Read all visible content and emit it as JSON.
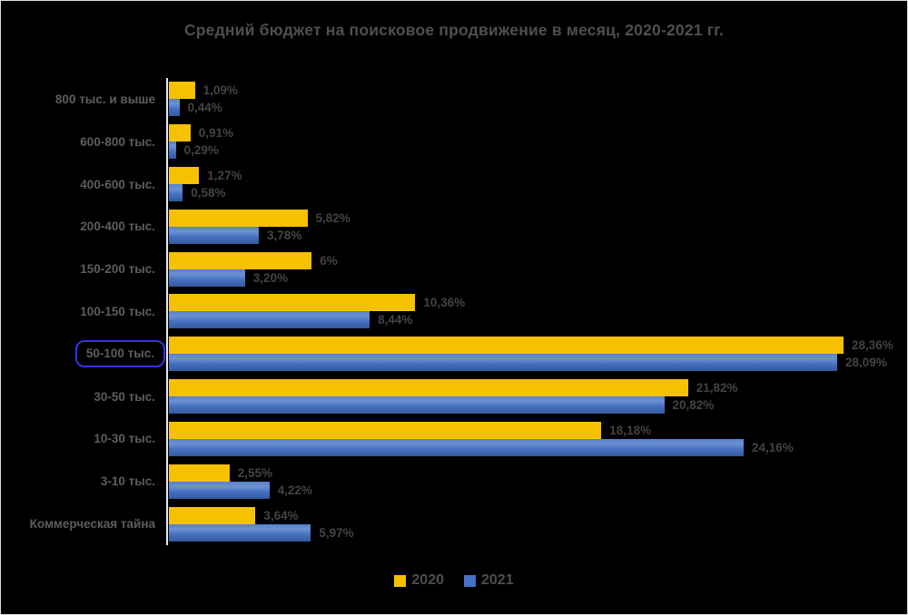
{
  "page": {
    "background_color": "#000000",
    "border_color": "#dcdcdc"
  },
  "chart_data": {
    "type": "bar",
    "orientation": "horizontal",
    "title": "Средний бюджет на поисковое продвижение в месяц, 2020-2021 гг.",
    "title_color": "#4f4f4f",
    "categories": [
      "800 тыс. и выше",
      "600-800 тыс.",
      "400-600 тыс.",
      "200-400 тыс.",
      "150-200 тыс.",
      "100-150 тыс.",
      "50-100 тыс.",
      "30-50 тыс.",
      "10-30 тыс.",
      "3-10 тыс.",
      "Коммерческая тайна"
    ],
    "series": [
      {
        "name": "2020",
        "color": "#f6c101",
        "values": [
          1.09,
          0.91,
          1.27,
          5.82,
          6,
          10.36,
          28.36,
          21.82,
          18.18,
          2.55,
          3.64
        ],
        "labels": [
          "1,09%",
          "0,91%",
          "1,27%",
          "5,82%",
          "6%",
          "10,36%",
          "28,36%",
          "21,82%",
          "18,18%",
          "2,55%",
          "3,64%"
        ]
      },
      {
        "name": "2021",
        "color": "#4472c4",
        "values": [
          0.44,
          0.29,
          0.58,
          3.78,
          3.2,
          8.44,
          28.09,
          20.82,
          24.16,
          4.22,
          5.97
        ],
        "labels": [
          "0,44%",
          "0,29%",
          "0,58%",
          "3,78%",
          "3,20%",
          "8,44%",
          "28,09%",
          "20,82%",
          "24,16%",
          "4,22%",
          "5,97%"
        ]
      }
    ],
    "highlight": {
      "category_index": 6,
      "category": "50-100 тыс.",
      "box_color": "#3530ec"
    },
    "xlim": [
      0,
      29
    ],
    "grid": false,
    "legend_position": "bottom",
    "axis_line_color": "#e9e9e9",
    "value_label_color": "#434343",
    "category_label_color": "#5d5d5d"
  }
}
